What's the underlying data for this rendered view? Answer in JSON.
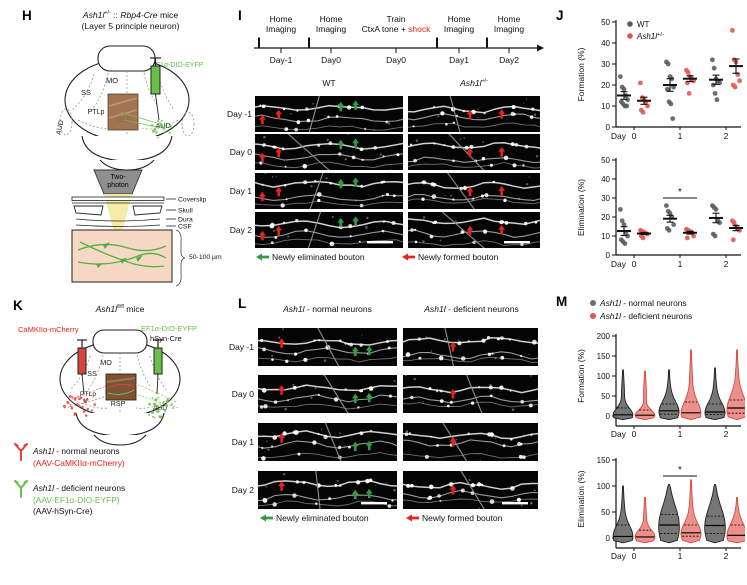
{
  "colors": {
    "accent_red": "#e8231a",
    "accent_green": "#2f9e3e",
    "green_text": "#6abf4b",
    "red_text": "#e8231a",
    "gray_dot": "#595959",
    "red_dot": "#e0534d",
    "violin_gray": "#6f6f6f",
    "violin_gray_stroke": "#141414",
    "violin_red": "#ed8b85",
    "violin_red_stroke": "#d04038",
    "tissue": "#f6d9c5",
    "window_brown": "#9b6a47"
  },
  "panel_h": {
    "label": "H",
    "title": {
      "gene": "Ash1l",
      "sup": "+/-",
      "mid": " :: ",
      "gene2": "Rbp4-Cre",
      "rest": " mice"
    },
    "subtitle": "(Layer 5 principle neuron)",
    "aav_label": "AAV: EF1α-DIO-EYFP",
    "regions": {
      "mo": "MO",
      "ss": "SS",
      "ptlp": "PTLp",
      "rsp": "RSP",
      "aud_right": "AUD",
      "aud_left": "AUD"
    },
    "objective_line1": "Two-",
    "objective_line2": "photon",
    "layers": [
      "Coverslip",
      "Skull",
      "Dura",
      "CSF"
    ],
    "depth_label": "50-100 μm"
  },
  "panel_i": {
    "label": "I",
    "timeline": [
      {
        "line1": "Home",
        "line2": "Imaging",
        "day": "Day-1"
      },
      {
        "line1": "Home",
        "line2": "Imaging",
        "day": "Day0"
      },
      {
        "line1": "Train",
        "line2_pre": "CtxA tone + ",
        "line2_accent": "shock",
        "day": "Day0"
      },
      {
        "line1": "Home",
        "line2": "Imaging",
        "day": "Day1"
      },
      {
        "line1": "Home",
        "line2": "Imaging",
        "day": "Day2"
      }
    ],
    "col1": "WT",
    "col2": {
      "gene": "Ash1l",
      "sup": "+/-"
    },
    "rows": [
      "Day -1",
      "Day 0",
      "Day 1",
      "Day 2"
    ],
    "legend": {
      "eliminated": "Newly eliminated bouton",
      "formed": "Newly formed bouton"
    },
    "arrows": {
      "wt": {
        "red": [
          [
            0.05,
            0.66
          ],
          [
            0.16,
            0.52
          ]
        ],
        "green": [
          [
            0.58,
            0.3
          ],
          [
            0.68,
            0.26
          ]
        ]
      },
      "het": {
        "red": [
          [
            0.47,
            0.52
          ],
          [
            0.71,
            0.5
          ]
        ]
      }
    }
  },
  "panel_j": {
    "label": "J",
    "legend": [
      {
        "label": "WT"
      },
      {
        "gene": "Ash1l",
        "sup": "+/-"
      }
    ]
  },
  "panel_k": {
    "label": "K",
    "title": {
      "gene": "Ash1l",
      "sup": "fl/fl",
      "rest": " mice"
    },
    "left_injection": "CaMKIIα-mCherry",
    "right_injection1": "EF1α-DIO-EYFP",
    "right_injection2": "hSyn-Cre",
    "regions": {
      "mo": "MO",
      "ss": "SS",
      "ptlp": "PTLp",
      "rsp": "RSP",
      "aud_right": "AUD"
    },
    "legend": [
      {
        "gene": "Ash1l",
        "rest": " - normal neurons",
        "sub": "(AAV-CaMKIIα-mCherry)"
      },
      {
        "gene": "Ash1l",
        "rest": " - deficient neurons",
        "sub": "(AAV-EF1α-DIO-EYFP)",
        "sub2": "(AAV-hSyn-Cre)"
      }
    ]
  },
  "panel_l": {
    "label": "L",
    "col1": {
      "gene": "Ash1l",
      "rest": " - normal neurons"
    },
    "col2": {
      "gene": "Ash1l",
      "rest": " - deficient  neurons"
    },
    "rows": [
      "Day -1",
      "Day 0",
      "Day 1",
      "Day 2"
    ],
    "legend": {
      "eliminated": "Newly eliminated bouton",
      "formed": "Newly formed bouton"
    },
    "arrows": {
      "normal": {
        "red": [
          [
            0.17,
            0.4
          ]
        ],
        "green": [
          [
            0.7,
            0.62
          ],
          [
            0.8,
            0.6
          ]
        ]
      },
      "deficient": {
        "red": [
          [
            0.37,
            0.5
          ]
        ]
      }
    }
  },
  "panel_m": {
    "label": "M",
    "legend": [
      {
        "gene": "Ash1l",
        "rest": " - normal neurons"
      },
      {
        "gene": "Ash1l",
        "rest": " - deficient neurons"
      }
    ]
  },
  "chart_data": [
    {
      "id": "j_formation",
      "type": "scatter",
      "title": "",
      "ylabel": "Formation (%)",
      "ylim": [
        0,
        50
      ],
      "yticks": [
        0,
        10,
        20,
        30,
        40,
        50
      ],
      "xlabel_prefix": "Day",
      "categories": [
        "0",
        "1",
        "2"
      ],
      "legend_position": "top-left-inside",
      "grid": false,
      "series": [
        {
          "name": "WT",
          "name_parts": {
            "plain": "WT"
          },
          "color": "#595959",
          "points": [
            [
              24,
              19,
              18,
              15,
              13,
              12,
              11,
              10,
              10
            ],
            [
              31,
              30,
              24,
              23,
              19,
              18,
              12,
              11,
              4
            ],
            [
              32,
              28,
              23,
              22,
              21,
              20,
              16,
              13
            ]
          ],
          "mean": [
            15,
            20,
            22.5
          ],
          "sem": [
            1.8,
            3,
            2.2
          ]
        },
        {
          "name": "Ash1l+/-",
          "name_parts": {
            "it": "Ash1l",
            "sup": "+/-"
          },
          "color": "#e0534d",
          "points": [
            [
              21,
              14,
              13,
              12,
              10,
              8,
              7
            ],
            [
              27,
              26,
              24,
              23,
              22,
              21,
              16
            ],
            [
              46,
              32,
              31,
              25,
              22,
              20,
              19
            ]
          ],
          "mean": [
            12.5,
            23,
            29
          ],
          "sem": [
            1.7,
            1.4,
            3.4
          ]
        }
      ]
    },
    {
      "id": "j_elimination",
      "type": "scatter",
      "title": "",
      "ylabel": "Elimination (%)",
      "ylim": [
        0,
        50
      ],
      "yticks": [
        0,
        10,
        20,
        30,
        40,
        50
      ],
      "xlabel_prefix": "Day",
      "categories": [
        "0",
        "1",
        "2"
      ],
      "grid": false,
      "series": [
        {
          "name": "WT",
          "color": "#595959",
          "points": [
            [
              24,
              18,
              16,
              12,
              10,
              8,
              7,
              6
            ],
            [
              26,
              23,
              22,
              20,
              16,
              14,
              13
            ],
            [
              26,
              25,
              24,
              18,
              17,
              11,
              10
            ]
          ],
          "mean": [
            12.6,
            19.1,
            19.5
          ],
          "sem": [
            2.3,
            1.8,
            2.5
          ]
        },
        {
          "name": "Ash1l+/-",
          "color": "#e0534d",
          "points": [
            [
              13,
              12.5,
              12,
              11.5,
              11,
              10,
              9
            ],
            [
              13.5,
              13,
              12.5,
              12,
              10,
              9
            ],
            [
              18,
              17,
              15,
              14,
              13,
              8
            ]
          ],
          "mean": [
            11.3,
            11.7,
            14.2
          ],
          "sem": [
            0.5,
            0.7,
            1.4
          ]
        }
      ],
      "significance": {
        "category_index": 1,
        "label": "*"
      }
    },
    {
      "id": "m_formation",
      "type": "violin",
      "title": "",
      "ylabel": "Formation (%)",
      "ylim": [
        0,
        200
      ],
      "yticks": [
        0,
        50,
        100,
        150,
        200
      ],
      "xlabel_prefix": "Day",
      "categories": [
        "0",
        "1",
        "2"
      ],
      "grid": false,
      "series": [
        {
          "name": "Ash1l - normal neurons",
          "color": "#6f6f6f",
          "stroke": "#141414",
          "violins": [
            {
              "max": 115,
              "median": 3,
              "q3": 20
            },
            {
              "max": 115,
              "median": 13,
              "q3": 30
            },
            {
              "max": 120,
              "median": 10,
              "q3": 30
            }
          ]
        },
        {
          "name": "Ash1l - deficient neurons",
          "color": "#ed8b85",
          "stroke": "#d04038",
          "violins": [
            {
              "max": 112,
              "median": 2,
              "q3": 15
            },
            {
              "max": 165,
              "median": 8,
              "q3": 35
            },
            {
              "max": 165,
              "median": 20,
              "q3": 40
            }
          ]
        }
      ]
    },
    {
      "id": "m_elimination",
      "type": "violin",
      "title": "",
      "ylabel": "Elimination (%)",
      "ylim": [
        0,
        150
      ],
      "yticks": [
        0,
        50,
        100,
        150
      ],
      "xlabel_prefix": "Day",
      "categories": [
        "0",
        "1",
        "2"
      ],
      "grid": false,
      "series": [
        {
          "name": "Ash1l - normal neurons",
          "color": "#6f6f6f",
          "stroke": "#141414",
          "violins": [
            {
              "max": 100,
              "median": 3,
              "q3": 25
            },
            {
              "max": 103,
              "median": 25,
              "q3": 45
            },
            {
              "max": 103,
              "median": 24,
              "q3": 42
            }
          ]
        },
        {
          "name": "Ash1l - deficient neurons",
          "color": "#ed8b85",
          "stroke": "#d04038",
          "violins": [
            {
              "max": 78,
              "median": 2,
              "q3": 15
            },
            {
              "max": 112,
              "median": 10,
              "q3": 25
            },
            {
              "max": 78,
              "median": 5,
              "q3": 25
            }
          ]
        }
      ],
      "significance": {
        "category_index": 1,
        "label": "*"
      }
    }
  ]
}
